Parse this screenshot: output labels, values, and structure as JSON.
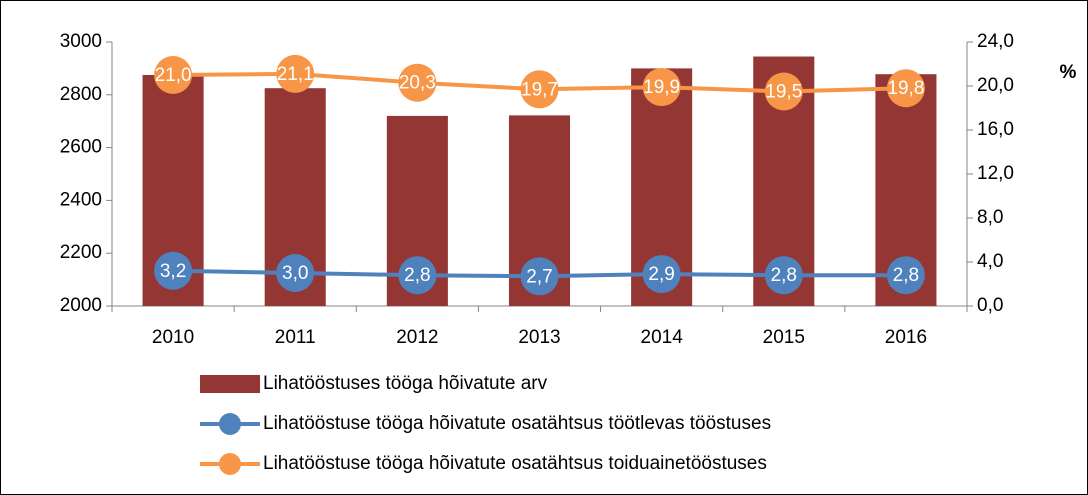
{
  "chart_data": {
    "type": "bar",
    "categories": [
      "2010",
      "2011",
      "2012",
      "2013",
      "2014",
      "2015",
      "2016"
    ],
    "ylim": [
      2000,
      3000
    ],
    "yticks": [
      2000,
      2200,
      2400,
      2600,
      2800,
      3000
    ],
    "y2lim": [
      0,
      24
    ],
    "y2ticks": [
      {
        "value": 0,
        "label": "0,0"
      },
      {
        "value": 4,
        "label": "4,0"
      },
      {
        "value": 8,
        "label": "8,0"
      },
      {
        "value": 12,
        "label": "12,0"
      },
      {
        "value": 16,
        "label": "16,0"
      },
      {
        "value": 20,
        "label": "20,0"
      },
      {
        "value": 24,
        "label": "24,0"
      }
    ],
    "y2label": "%",
    "grid": false,
    "series": [
      {
        "name": "Lihatööstuses tööga hõivatute arv",
        "type": "bar",
        "color": "#943634",
        "values": [
          2875,
          2825,
          2720,
          2722,
          2900,
          2945,
          2878
        ]
      },
      {
        "name": "Lihatööstuse tööga hõivatute osatähtsus töötlevas tööstuses",
        "type": "line",
        "axis": "y2",
        "color": "#4f81bd",
        "values": [
          3.2,
          3.0,
          2.8,
          2.7,
          2.9,
          2.8,
          2.8
        ],
        "value_labels": [
          "3,2",
          "3,0",
          "2,8",
          "2,7",
          "2,9",
          "2,8",
          "2,8"
        ]
      },
      {
        "name": "Lihatööstuse tööga hõivatute osatähtsus toiduainetööstuses",
        "type": "line",
        "axis": "y2",
        "color": "#f79646",
        "values": [
          21.0,
          21.1,
          20.3,
          19.7,
          19.9,
          19.5,
          19.8
        ],
        "value_labels": [
          "21,0",
          "21,1",
          "20,3",
          "19,7",
          "19,9",
          "19,5",
          "19,8"
        ]
      }
    ]
  }
}
